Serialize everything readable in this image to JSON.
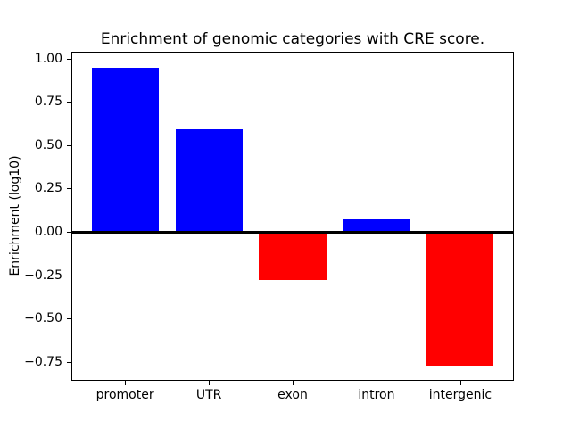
{
  "figure": {
    "background_color": "#ffffff",
    "text_color": "#000000"
  },
  "chart_data": {
    "type": "bar",
    "title": "Enrichment of genomic categories with CRE score.",
    "xlabel": "",
    "ylabel": "Enrichment (log10)",
    "categories": [
      "promoter",
      "UTR",
      "exon",
      "intron",
      "intergenic"
    ],
    "values": [
      0.95,
      0.59,
      -0.28,
      0.07,
      -0.77
    ],
    "bar_colors": [
      "#0000ff",
      "#0000ff",
      "#ff0000",
      "#0000ff",
      "#ff0000"
    ],
    "positive_color": "#0000ff",
    "negative_color": "#ff0000",
    "bar_width": 0.8,
    "ylim": [
      -0.86,
      1.04
    ],
    "yticks": [
      1.0,
      0.75,
      0.5,
      0.25,
      0.0,
      -0.25,
      -0.5,
      -0.75
    ],
    "ytick_labels": [
      "1.00",
      "0.75",
      "0.50",
      "0.25",
      "0.00",
      "−0.25",
      "−0.50",
      "−0.75"
    ],
    "zero_line": true,
    "zero_line_color": "#000000",
    "grid": false,
    "legend": null
  }
}
